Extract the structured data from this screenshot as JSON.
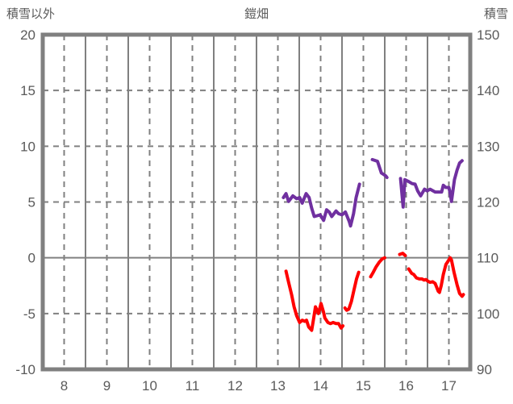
{
  "chart_data": {
    "type": "line",
    "title": "鎧畑",
    "left_axis": {
      "label": "積雪以外",
      "ticks": [
        20,
        15,
        10,
        5,
        0,
        -5,
        -10
      ],
      "min": -10,
      "max": 20
    },
    "right_axis": {
      "label": "積雪",
      "ticks": [
        150,
        140,
        130,
        120,
        110,
        100,
        90
      ],
      "min": 90,
      "max": 150
    },
    "x_axis": {
      "ticks": [
        8,
        9,
        10,
        11,
        12,
        13,
        14,
        15,
        16,
        17
      ],
      "min": 7.5,
      "max": 17.5
    },
    "grid": {
      "h_dashed": [
        15,
        10,
        5,
        -5
      ],
      "h_solid": [
        0
      ],
      "v_dashed_at_hour_centers": true,
      "v_solid_at_hour_boundaries": true
    },
    "colors": {
      "grid": "#808080",
      "text": "#5a5a5a",
      "snow_depth_line": "#7030A0",
      "other_line": "#FF0000"
    },
    "series": [
      {
        "name": "積雪",
        "axis": "right",
        "color": "#7030A0",
        "segments": [
          [
            [
              13.13,
              120.8
            ],
            [
              13.19,
              121.5
            ],
            [
              13.25,
              120.1
            ],
            [
              13.35,
              121.1
            ],
            [
              13.44,
              120.6
            ],
            [
              13.51,
              120.8
            ],
            [
              13.57,
              119.8
            ],
            [
              13.66,
              121.5
            ],
            [
              13.73,
              120.8
            ],
            [
              13.79,
              118.9
            ],
            [
              13.85,
              117.4
            ],
            [
              13.99,
              117.7
            ],
            [
              14.07,
              116.7
            ],
            [
              14.14,
              118.6
            ],
            [
              14.2,
              118.2
            ],
            [
              14.26,
              117.4
            ],
            [
              14.36,
              118.4
            ],
            [
              14.42,
              117.9
            ],
            [
              14.5,
              117.7
            ],
            [
              14.58,
              118.2
            ],
            [
              14.67,
              116.5
            ],
            [
              14.7,
              115.7
            ],
            [
              14.77,
              117.9
            ],
            [
              14.83,
              120.8
            ],
            [
              14.91,
              123.2
            ]
          ],
          [
            [
              15.21,
              127.6
            ],
            [
              15.33,
              127.3
            ],
            [
              15.42,
              125.2
            ],
            [
              15.52,
              124.7
            ],
            [
              15.55,
              124.4
            ]
          ],
          [
            [
              15.87,
              124.2
            ],
            [
              15.93,
              119.1
            ],
            [
              15.97,
              124.0
            ],
            [
              16.05,
              123.7
            ],
            [
              16.14,
              123.3
            ],
            [
              16.21,
              123.2
            ],
            [
              16.27,
              122.0
            ],
            [
              16.34,
              121.1
            ],
            [
              16.43,
              122.3
            ],
            [
              16.49,
              122.0
            ],
            [
              16.56,
              122.3
            ],
            [
              16.68,
              121.8
            ],
            [
              16.83,
              121.8
            ],
            [
              16.87,
              123.0
            ],
            [
              16.93,
              122.6
            ],
            [
              17.0,
              122.6
            ],
            [
              17.03,
              121.6
            ],
            [
              17.06,
              120.1
            ],
            [
              17.13,
              124.0
            ],
            [
              17.19,
              125.7
            ],
            [
              17.25,
              127.0
            ],
            [
              17.31,
              127.4
            ]
          ]
        ]
      },
      {
        "name": "積雪以外",
        "axis": "left",
        "color": "#FF0000",
        "segments": [
          [
            [
              13.19,
              -1.2
            ],
            [
              13.25,
              -2.2
            ],
            [
              13.32,
              -3.3
            ],
            [
              13.38,
              -4.4
            ],
            [
              13.44,
              -5.2
            ],
            [
              13.51,
              -5.8
            ],
            [
              13.57,
              -5.6
            ],
            [
              13.63,
              -5.7
            ],
            [
              13.67,
              -5.6
            ],
            [
              13.72,
              -6.2
            ],
            [
              13.79,
              -6.5
            ],
            [
              13.83,
              -5.6
            ],
            [
              13.88,
              -4.4
            ],
            [
              13.95,
              -5.0
            ],
            [
              14.01,
              -4.1
            ],
            [
              14.07,
              -4.9
            ],
            [
              14.1,
              -5.4
            ],
            [
              14.17,
              -5.8
            ],
            [
              14.23,
              -5.9
            ],
            [
              14.29,
              -5.8
            ],
            [
              14.36,
              -5.9
            ],
            [
              14.42,
              -5.9
            ],
            [
              14.48,
              -6.3
            ],
            [
              14.52,
              -6.1
            ]
          ],
          [
            [
              14.57,
              -4.5
            ],
            [
              14.61,
              -4.7
            ],
            [
              14.66,
              -4.6
            ],
            [
              14.72,
              -3.9
            ],
            [
              14.78,
              -2.9
            ],
            [
              14.84,
              -1.9
            ],
            [
              14.89,
              -1.3
            ]
          ],
          [
            [
              15.17,
              -1.7
            ],
            [
              15.23,
              -1.3
            ],
            [
              15.3,
              -0.8
            ],
            [
              15.37,
              -0.4
            ],
            [
              15.44,
              -0.1
            ],
            [
              15.5,
              0.0
            ]
          ],
          [
            [
              15.85,
              0.3
            ],
            [
              15.92,
              0.4
            ],
            [
              15.98,
              0.2
            ]
          ],
          [
            [
              16.06,
              -1.0
            ],
            [
              16.13,
              -1.4
            ],
            [
              16.18,
              -1.5
            ],
            [
              16.24,
              -1.8
            ],
            [
              16.31,
              -1.9
            ],
            [
              16.37,
              -1.9
            ],
            [
              16.42,
              -2.0
            ],
            [
              16.46,
              -1.95
            ],
            [
              16.51,
              -2.1
            ],
            [
              16.56,
              -2.2
            ],
            [
              16.62,
              -2.15
            ],
            [
              16.68,
              -2.3
            ],
            [
              16.75,
              -3.0
            ],
            [
              16.78,
              -3.1
            ],
            [
              16.82,
              -2.5
            ],
            [
              16.87,
              -1.5
            ],
            [
              16.93,
              -0.6
            ],
            [
              17.0,
              -0.2
            ],
            [
              17.03,
              0.0
            ],
            [
              17.06,
              -0.2
            ],
            [
              17.12,
              -1.3
            ],
            [
              17.19,
              -2.4
            ],
            [
              17.25,
              -3.2
            ],
            [
              17.31,
              -3.45
            ],
            [
              17.34,
              -3.3
            ]
          ]
        ]
      }
    ]
  }
}
